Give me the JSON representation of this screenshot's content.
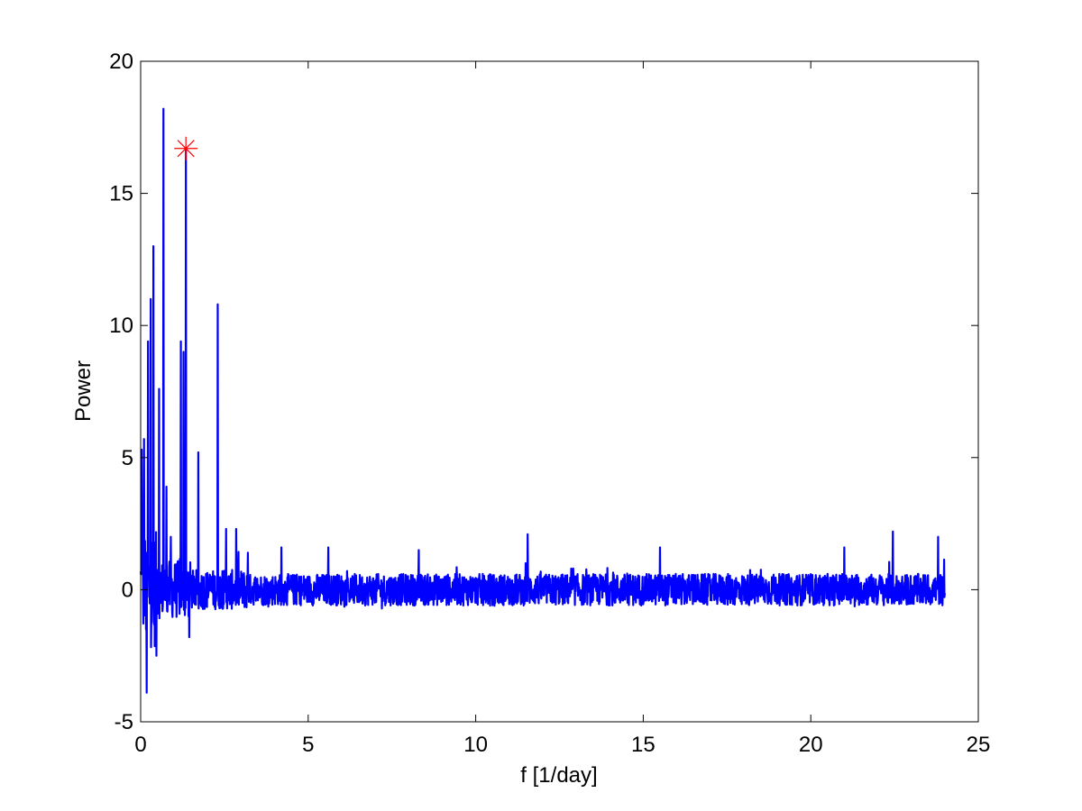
{
  "chart_data": {
    "type": "line",
    "title": "",
    "xlabel": "f [1/day]",
    "ylabel": "Power",
    "xlim": [
      0,
      25
    ],
    "ylim": [
      -5,
      20
    ],
    "xticks": [
      0,
      5,
      10,
      15,
      20,
      25
    ],
    "yticks": [
      -5,
      0,
      5,
      10,
      15,
      20
    ],
    "xtick_labels": [
      "0",
      "5",
      "10",
      "15",
      "20",
      "25"
    ],
    "ytick_labels": [
      "-5",
      "0",
      "5",
      "10",
      "15",
      "20"
    ],
    "grid": false,
    "box": true,
    "series": [
      {
        "color": "#0000ff",
        "x_range": [
          0,
          24
        ],
        "approx_peaks": [
          {
            "x": 0.03,
            "y": 5.3
          },
          {
            "x": 0.1,
            "y": 5.7
          },
          {
            "x": 0.18,
            "y": -3.9
          },
          {
            "x": 0.22,
            "y": 9.4
          },
          {
            "x": 0.3,
            "y": 11.0
          },
          {
            "x": 0.38,
            "y": 13.0
          },
          {
            "x": 0.47,
            "y": -2.5
          },
          {
            "x": 0.55,
            "y": 7.6
          },
          {
            "x": 0.68,
            "y": 18.2
          },
          {
            "x": 0.77,
            "y": 3.9
          },
          {
            "x": 0.9,
            "y": 2.0
          },
          {
            "x": 1.2,
            "y": 9.4
          },
          {
            "x": 1.28,
            "y": 9.0
          },
          {
            "x": 1.35,
            "y": 16.7
          },
          {
            "x": 1.45,
            "y": -1.8
          },
          {
            "x": 1.72,
            "y": 5.2
          },
          {
            "x": 2.3,
            "y": 10.8
          },
          {
            "x": 2.55,
            "y": 2.3
          },
          {
            "x": 2.85,
            "y": 2.3
          },
          {
            "x": 3.2,
            "y": 1.4
          },
          {
            "x": 4.2,
            "y": 1.6
          },
          {
            "x": 5.6,
            "y": 1.6
          },
          {
            "x": 8.3,
            "y": 1.5
          },
          {
            "x": 11.55,
            "y": 2.1
          },
          {
            "x": 15.5,
            "y": 1.6
          },
          {
            "x": 21.0,
            "y": 1.6
          },
          {
            "x": 22.45,
            "y": 2.2
          },
          {
            "x": 23.8,
            "y": 2.0
          }
        ],
        "noise_amplitude": 0.6
      }
    ],
    "marker": {
      "x": 1.35,
      "y": 16.7,
      "symbol": "*",
      "color": "#ff0000"
    }
  }
}
